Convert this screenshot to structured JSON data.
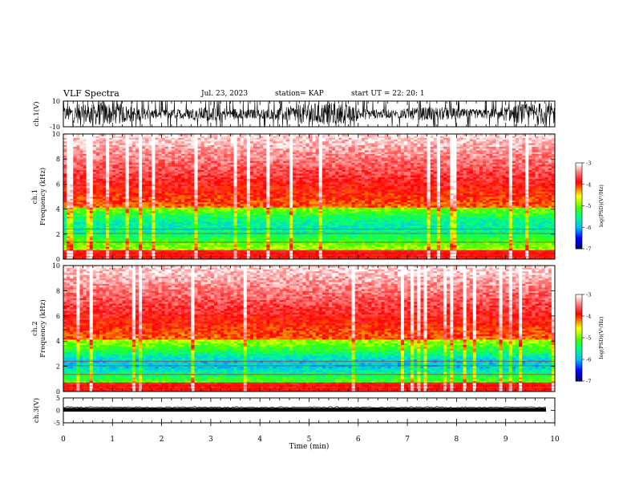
{
  "header": {
    "title": "VLF Spectra",
    "date": "Jul. 23, 2023",
    "station": "station= KAP",
    "start": "start  UT =  22: 20: 1"
  },
  "chart_data": [
    {
      "type": "line",
      "panel": "waveform-ch1",
      "ylabel": "ch.1(V)",
      "ylim": [
        -10,
        10
      ],
      "yticks": [
        -10,
        10
      ],
      "xlim": [
        0,
        10
      ],
      "color": "#000000"
    },
    {
      "type": "heatmap",
      "panel": "spectrogram-ch1",
      "ylabel_line1": "ch.1",
      "ylabel_line2": "Frequency (kHz)",
      "ylim": [
        0,
        10
      ],
      "yticks": [
        0,
        2,
        4,
        6,
        8,
        10
      ],
      "xlim": [
        0,
        10
      ],
      "colorbar": {
        "label": "log(PSD)(V²/Hz)",
        "range": [
          -7,
          -3
        ],
        "ticks": [
          -7,
          -6,
          -5,
          -4,
          -3
        ],
        "colors": [
          "#000080",
          "#0000ff",
          "#00c0ff",
          "#00ff80",
          "#40ff00",
          "#c0ff00",
          "#ffff00",
          "#ff8000",
          "#ff0000",
          "#ff8080",
          "#ffffff"
        ]
      }
    },
    {
      "type": "heatmap",
      "panel": "spectrogram-ch2",
      "ylabel_line1": "ch.2",
      "ylabel_line2": "Frequency (kHz)",
      "ylim": [
        0,
        10
      ],
      "yticks": [
        0,
        2,
        4,
        6,
        8,
        10
      ],
      "xlim": [
        0,
        10
      ],
      "colorbar": {
        "label": "log(PSD)(V²/Hz)",
        "range": [
          -7,
          -3
        ],
        "ticks": [
          -7,
          -6,
          -5,
          -4,
          -3
        ]
      }
    },
    {
      "type": "line",
      "panel": "waveform-ch3",
      "ylabel": "ch.3(V)",
      "ylim": [
        -5,
        5
      ],
      "yticks": [
        -5,
        0,
        5
      ],
      "xlim": [
        0,
        10
      ],
      "xlabel": "Time (min)",
      "xticks": [
        0,
        1,
        2,
        3,
        4,
        5,
        6,
        7,
        8,
        9,
        10
      ],
      "data_end_min": 9.82,
      "color": "#000000"
    }
  ]
}
